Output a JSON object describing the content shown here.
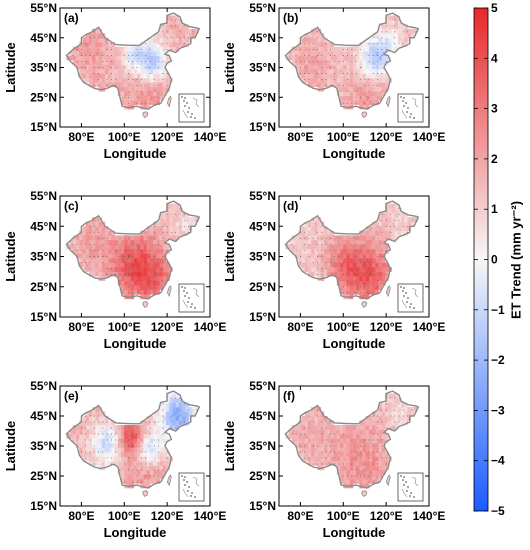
{
  "chart_data": {
    "type": "heatmap",
    "panels": [
      {
        "label": "(a)"
      },
      {
        "label": "(b)"
      },
      {
        "label": "(c)"
      },
      {
        "label": "(d)"
      },
      {
        "label": "(e)"
      },
      {
        "label": "(f)"
      }
    ],
    "xlabel": "Longitude",
    "ylabel": "Latitude",
    "x_ticks": [
      80,
      100,
      120,
      140
    ],
    "x_tick_labels": [
      "80°E",
      "100°E",
      "120°E",
      "140°E"
    ],
    "xlim": [
      70,
      140
    ],
    "y_ticks": [
      15,
      25,
      35,
      45,
      55
    ],
    "y_tick_labels": [
      "15°N",
      "25°N",
      "35°N",
      "45°N",
      "55°N"
    ],
    "ylim": [
      15,
      55
    ],
    "colorbar": {
      "label": "ET Trend (mm yr⁻²)",
      "vmin": -5,
      "vmax": 5,
      "ticks": [
        5,
        4,
        3,
        2,
        1,
        0,
        -1,
        -2,
        -3,
        -4,
        -5
      ],
      "tick_labels": [
        "5",
        "4",
        "3",
        "2",
        "1",
        "0",
        "−1",
        "−2",
        "−3",
        "−4",
        "−5"
      ],
      "colors": {
        "low": "#1a5cff",
        "mid": "#f7f7f7",
        "high": "#e8282b"
      }
    },
    "grid": false
  }
}
